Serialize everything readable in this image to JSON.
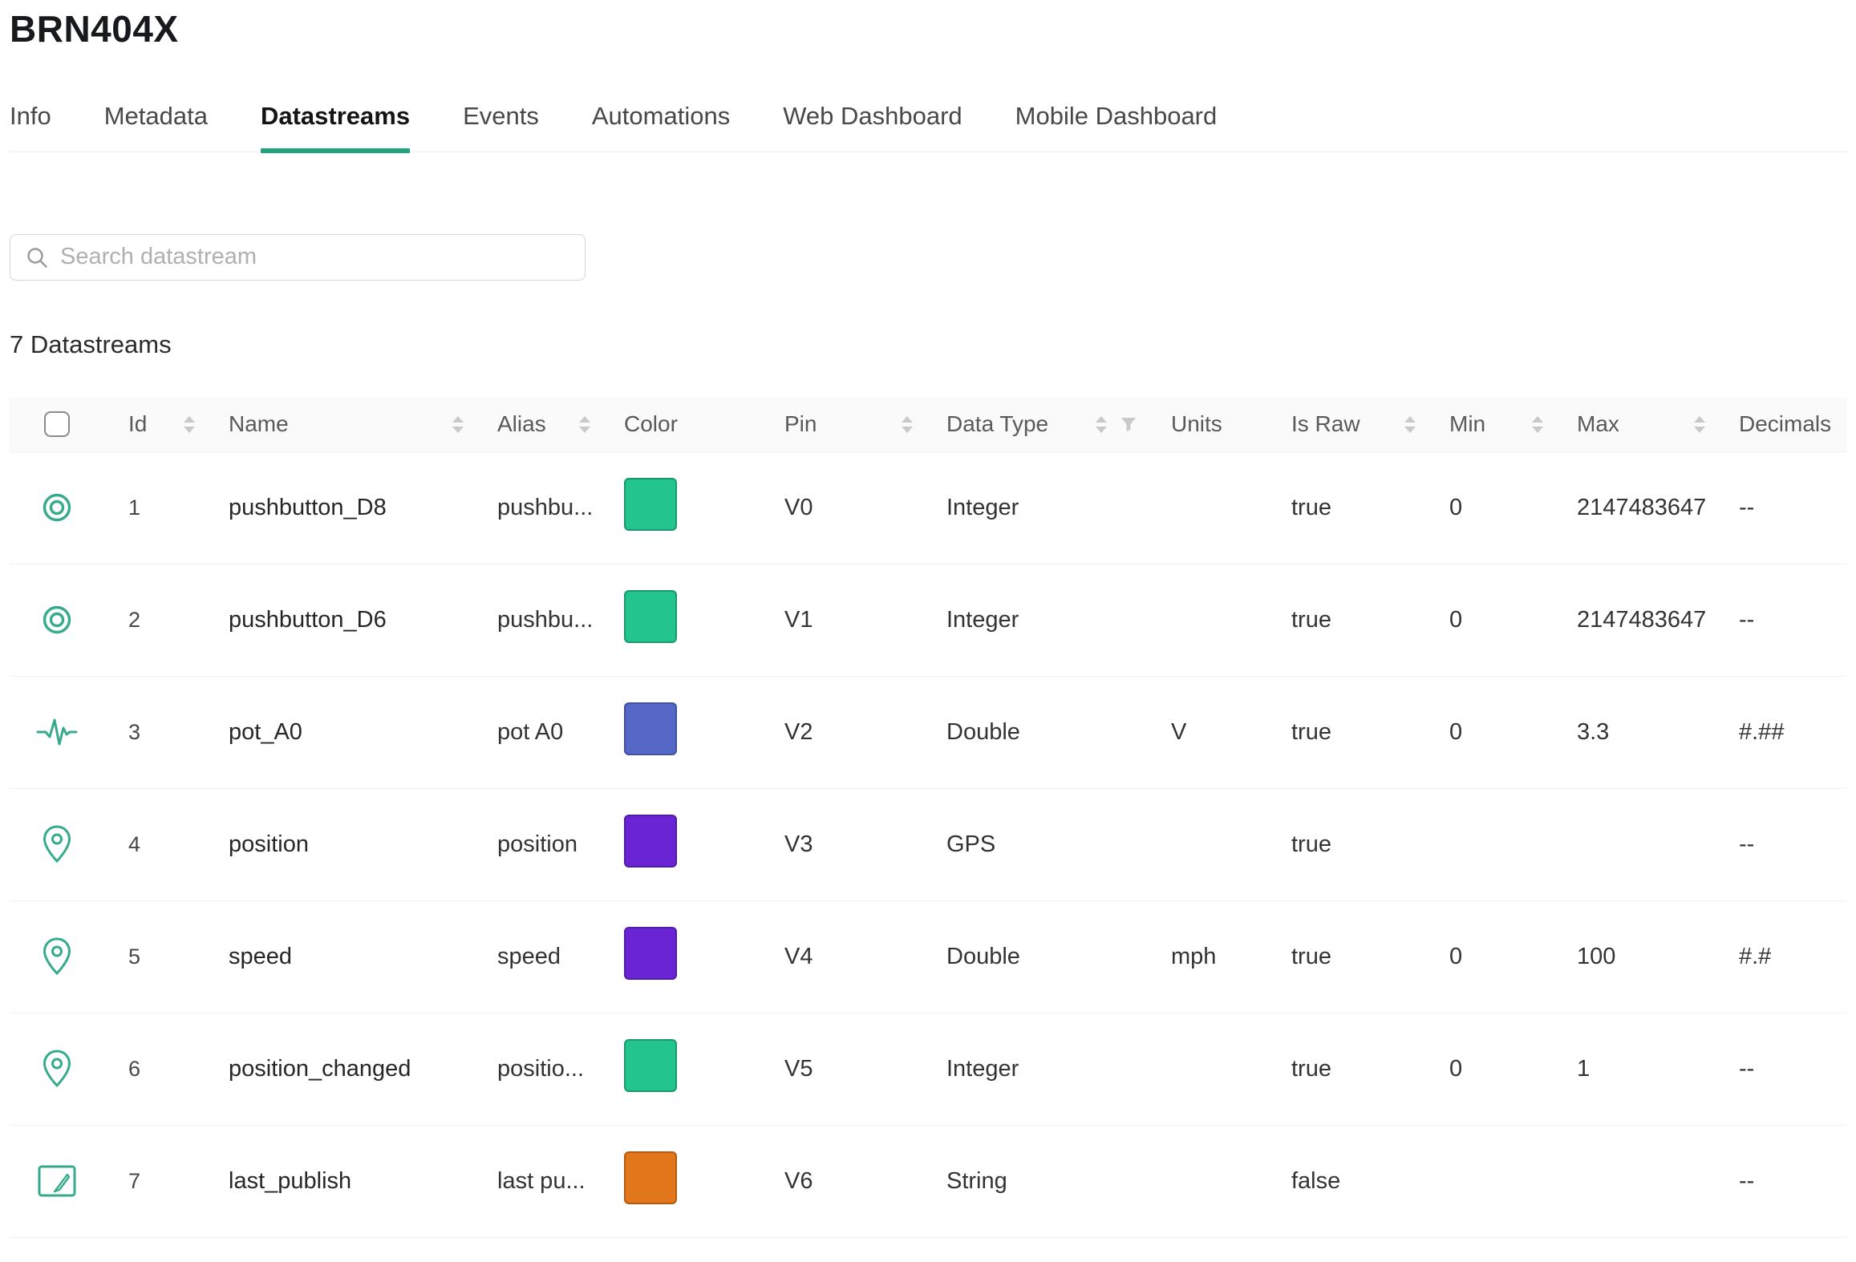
{
  "page": {
    "title": "BRN404X"
  },
  "tabs": [
    {
      "label": "Info",
      "active": false
    },
    {
      "label": "Metadata",
      "active": false
    },
    {
      "label": "Datastreams",
      "active": true
    },
    {
      "label": "Events",
      "active": false
    },
    {
      "label": "Automations",
      "active": false
    },
    {
      "label": "Web Dashboard",
      "active": false
    },
    {
      "label": "Mobile Dashboard",
      "active": false
    }
  ],
  "search": {
    "placeholder": "Search datastream"
  },
  "summary": "7 Datastreams",
  "colors": {
    "accent_teal": "#1fa37c",
    "icon_teal": "#36ab8b",
    "swatch_green": "#23c48e",
    "swatch_blue": "#5568c8",
    "swatch_purple": "#6a24d4",
    "swatch_orange": "#e2761b"
  },
  "table": {
    "columns": [
      {
        "key": "select",
        "label": ""
      },
      {
        "key": "id",
        "label": "Id"
      },
      {
        "key": "name",
        "label": "Name"
      },
      {
        "key": "alias",
        "label": "Alias"
      },
      {
        "key": "color",
        "label": "Color"
      },
      {
        "key": "pin",
        "label": "Pin"
      },
      {
        "key": "dataType",
        "label": "Data Type"
      },
      {
        "key": "units",
        "label": "Units"
      },
      {
        "key": "isRaw",
        "label": "Is Raw"
      },
      {
        "key": "min",
        "label": "Min"
      },
      {
        "key": "max",
        "label": "Max"
      },
      {
        "key": "decimals",
        "label": "Decimals"
      }
    ],
    "rows": [
      {
        "icon": "radio-button",
        "id": "1",
        "name": "pushbutton_D8",
        "alias": "pushbu...",
        "color": "#23c48e",
        "pin": "V0",
        "dataType": "Integer",
        "units": "",
        "isRaw": "true",
        "min": "0",
        "max": "2147483647",
        "decimals": "--"
      },
      {
        "icon": "radio-button",
        "id": "2",
        "name": "pushbutton_D6",
        "alias": "pushbu...",
        "color": "#23c48e",
        "pin": "V1",
        "dataType": "Integer",
        "units": "",
        "isRaw": "true",
        "min": "0",
        "max": "2147483647",
        "decimals": "--"
      },
      {
        "icon": "waveform",
        "id": "3",
        "name": "pot_A0",
        "alias": "pot A0",
        "color": "#5568c8",
        "pin": "V2",
        "dataType": "Double",
        "units": "V",
        "isRaw": "true",
        "min": "0",
        "max": "3.3",
        "decimals": "#.##"
      },
      {
        "icon": "location-pin",
        "id": "4",
        "name": "position",
        "alias": "position",
        "color": "#6a24d4",
        "pin": "V3",
        "dataType": "GPS",
        "units": "",
        "isRaw": "true",
        "min": "",
        "max": "",
        "decimals": "--"
      },
      {
        "icon": "location-pin",
        "id": "5",
        "name": "speed",
        "alias": "speed",
        "color": "#6a24d4",
        "pin": "V4",
        "dataType": "Double",
        "units": "mph",
        "isRaw": "true",
        "min": "0",
        "max": "100",
        "decimals": "#.#"
      },
      {
        "icon": "location-pin",
        "id": "6",
        "name": "position_changed",
        "alias": "positio...",
        "color": "#23c48e",
        "pin": "V5",
        "dataType": "Integer",
        "units": "",
        "isRaw": "true",
        "min": "0",
        "max": "1",
        "decimals": "--"
      },
      {
        "icon": "edit-box",
        "id": "7",
        "name": "last_publish",
        "alias": "last pu...",
        "color": "#e2761b",
        "pin": "V6",
        "dataType": "String",
        "units": "",
        "isRaw": "false",
        "min": "",
        "max": "",
        "decimals": "--"
      }
    ]
  }
}
